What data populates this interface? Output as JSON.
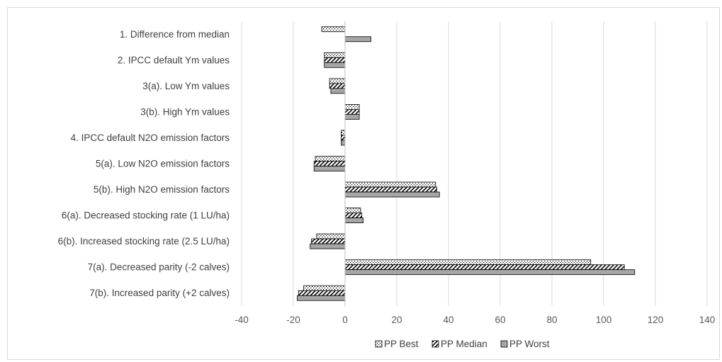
{
  "chart_data": {
    "type": "bar",
    "orientation": "horizontal",
    "title": "",
    "xlabel": "",
    "ylabel": "",
    "categories": [
      "1. Difference from median",
      "2. IPCC default Ym values",
      "3(a). Low Ym values",
      "3(b). High Ym values",
      "4. IPCC default N2O emission factors",
      "5(a). Low N2O emission factors",
      "5(b). High N2O emission factors",
      "6(a). Decreased stocking rate (1 LU/ha)",
      "6(b). Increased stocking rate (2.5 LU/ha)",
      "7(a). Decreased parity (-2 calves)",
      "7(b). Increased parity (+2 calves)"
    ],
    "series": [
      {
        "name": "PP Best",
        "pattern": "dots",
        "values": [
          -9,
          -8,
          -6,
          5.5,
          -1.5,
          -11.5,
          35,
          6,
          -11,
          95,
          -16
        ]
      },
      {
        "name": "PP Median",
        "pattern": "diagonal",
        "values": [
          0,
          -8,
          -6,
          5.5,
          -1.5,
          -12,
          35.5,
          6.5,
          -13,
          108,
          -18
        ]
      },
      {
        "name": "PP Worst",
        "pattern": "solid",
        "values": [
          10,
          -8,
          -5.5,
          5.5,
          -1.5,
          -12,
          36.5,
          7,
          -13.5,
          112,
          -18.5
        ]
      }
    ],
    "xlim": [
      -40,
      140
    ],
    "xticks": [
      -40,
      -20,
      0,
      20,
      40,
      60,
      80,
      100,
      120,
      140
    ],
    "grid": true,
    "legend_position": "bottom"
  },
  "colors": {
    "bar_fill": "#a6a6a6",
    "bar_outline": "#000000",
    "gridline": "#d9d9d9",
    "axis_text": "#595959",
    "label_text": "#404040"
  }
}
